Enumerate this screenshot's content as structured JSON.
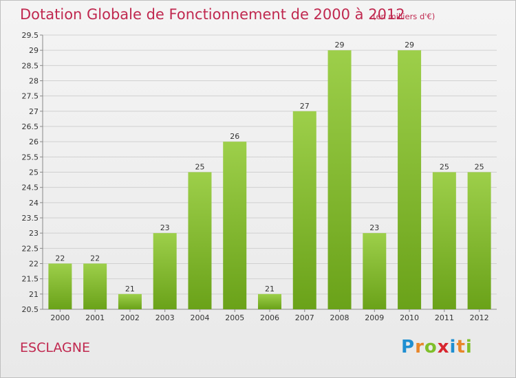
{
  "title": "Dotation Globale de Fonctionnement de 2000 à 2012",
  "subtitle": "(en milliers d'€)",
  "place": "ESCLAGNE",
  "logo": {
    "text": "Proxiti",
    "letters": [
      {
        "ch": "P",
        "color": "#1f8fd1"
      },
      {
        "ch": "r",
        "color": "#e8862a"
      },
      {
        "ch": "o",
        "color": "#7fbf2a"
      },
      {
        "ch": "x",
        "color": "#d8262f"
      },
      {
        "ch": "i",
        "color": "#1f8fd1"
      },
      {
        "ch": "t",
        "color": "#e8862a"
      },
      {
        "ch": "i",
        "color": "#7fbf2a"
      }
    ]
  },
  "colors": {
    "title": "#c0284f",
    "bar_top": "#9dcf4a",
    "bar_bottom": "#6aa219",
    "grid": "#d0d0d0"
  },
  "chart_data": {
    "type": "bar",
    "categories": [
      "2000",
      "2001",
      "2002",
      "2003",
      "2004",
      "2005",
      "2006",
      "2007",
      "2008",
      "2009",
      "2010",
      "2011",
      "2012"
    ],
    "values": [
      22,
      22,
      21,
      23,
      25,
      26,
      21,
      27,
      29,
      23,
      29,
      25,
      25
    ],
    "ylim": [
      20.5,
      29.5
    ],
    "yticks": [
      "20.5",
      "21",
      "21.5",
      "22",
      "22.5",
      "23",
      "23.5",
      "24",
      "24.5",
      "25",
      "25.5",
      "26",
      "26.5",
      "27",
      "27.5",
      "28",
      "28.5",
      "29",
      "29.5"
    ],
    "grid": true,
    "xlabel": "",
    "ylabel": ""
  }
}
